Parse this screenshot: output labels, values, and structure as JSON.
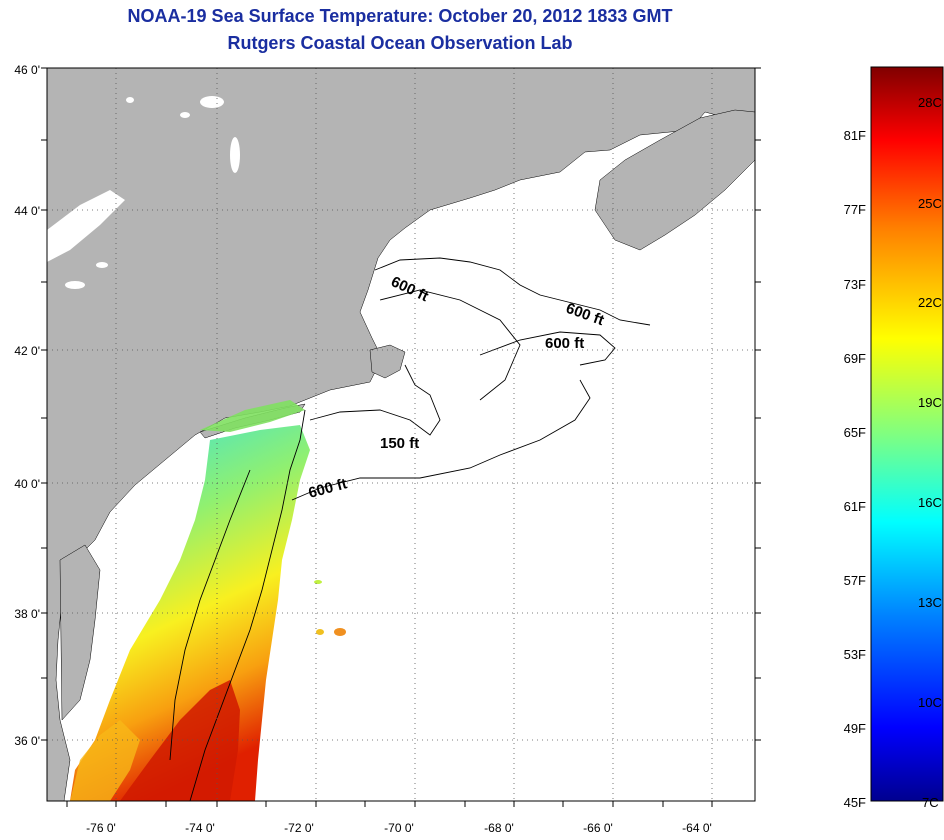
{
  "header": {
    "title": "NOAA-19 Sea Surface Temperature:  October 20, 2012 1833 GMT",
    "subtitle": "Rutgers Coastal Ocean Observation Lab"
  },
  "map": {
    "lat_labels": [
      "46 0'",
      "44 0'",
      "42 0'",
      "40 0'",
      "38 0'",
      "36 0'"
    ],
    "lon_labels": [
      "-76 0'",
      "-74 0'",
      "-72 0'",
      "-70 0'",
      "-68 0'",
      "-66 0'",
      "-64 0'"
    ],
    "lat_range": [
      35,
      46
    ],
    "lon_range": [
      -77,
      -63
    ],
    "land_color": "#b4b4b4",
    "no_data_color": "#ffffff",
    "contour_labels": [
      "600 ft",
      "600 ft",
      "600 ft",
      "150 ft",
      "600 ft"
    ]
  },
  "colorbar": {
    "celsius_labels": [
      "28C",
      "25C",
      "22C",
      "19C",
      "16C",
      "13C",
      "10C",
      "7C"
    ],
    "fahrenheit_labels": [
      "81F",
      "77F",
      "73F",
      "69F",
      "65F",
      "61F",
      "57F",
      "53F",
      "49F",
      "45F"
    ],
    "range_c": [
      7,
      29
    ],
    "colors_low_to_high": [
      "#00008f",
      "#0000ff",
      "#0080ff",
      "#00ffff",
      "#80ff80",
      "#ffff00",
      "#ff8000",
      "#ff0000",
      "#800000"
    ]
  }
}
